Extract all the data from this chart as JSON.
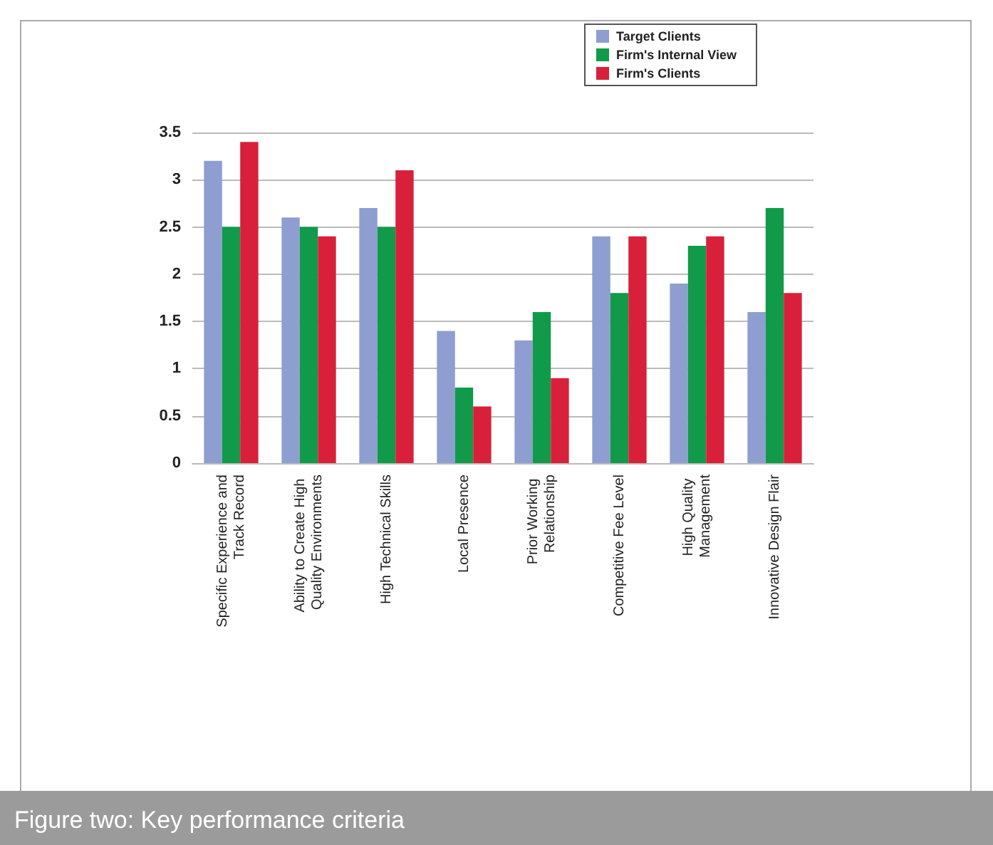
{
  "chart_data": {
    "type": "bar",
    "categories": [
      "Specific Experience and Track Record",
      "Ability to Create High Quality Environments",
      "High Technical Skills",
      "Local Presence",
      "Prior Working Relationship",
      "Competitive Fee Level",
      "High Quality Management",
      "Innovative Design Flair"
    ],
    "series": [
      {
        "name": "Target Clients",
        "color": "#8e9ed0",
        "values": [
          3.2,
          2.6,
          2.7,
          1.4,
          1.3,
          2.4,
          1.9,
          1.6
        ]
      },
      {
        "name": "Firm's Internal View",
        "color": "#119a4a",
        "values": [
          2.5,
          2.5,
          2.5,
          0.8,
          1.6,
          1.8,
          2.3,
          2.7
        ]
      },
      {
        "name": "Firm's Clients",
        "color": "#d9203a",
        "values": [
          3.4,
          2.4,
          3.1,
          0.6,
          0.9,
          2.4,
          2.4,
          1.8
        ]
      }
    ],
    "ylim": [
      0,
      3.5
    ],
    "yticks": [
      0,
      0.5,
      1,
      1.5,
      2,
      2.5,
      3,
      3.5
    ],
    "grid": "y",
    "legend": "top right",
    "annotations": [
      "Figure two: Key performance criteria"
    ]
  }
}
